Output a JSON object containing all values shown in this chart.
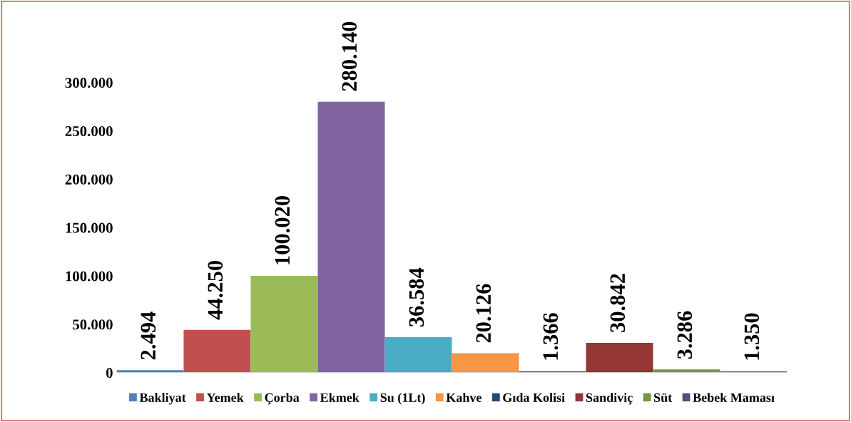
{
  "chart_data": {
    "type": "bar",
    "categories": [
      null
    ],
    "series": [
      {
        "name": "Bakliyat",
        "color": "#4f81bd",
        "values": [
          2494
        ],
        "value_labels": [
          "2.494"
        ]
      },
      {
        "name": "Yemek",
        "color": "#c0504d",
        "values": [
          44250
        ],
        "value_labels": [
          "44.250"
        ]
      },
      {
        "name": "Çorba",
        "color": "#9bbb59",
        "values": [
          100020
        ],
        "value_labels": [
          "100.020"
        ]
      },
      {
        "name": "Ekmek",
        "color": "#8064a2",
        "values": [
          280140
        ],
        "value_labels": [
          "280.140"
        ]
      },
      {
        "name": "Su (1Lt)",
        "color": "#4bacc6",
        "values": [
          36584
        ],
        "value_labels": [
          "36.584"
        ]
      },
      {
        "name": "Kahve",
        "color": "#f79646",
        "values": [
          20126
        ],
        "value_labels": [
          "20.126"
        ]
      },
      {
        "name": "Gıda Kolisi",
        "color": "#1f497d",
        "values": [
          1366
        ],
        "value_labels": [
          "1.366"
        ]
      },
      {
        "name": "Sandiviç",
        "color": "#943634",
        "values": [
          30842
        ],
        "value_labels": [
          "30.842"
        ]
      },
      {
        "name": "Süt",
        "color": "#77933c",
        "values": [
          3286
        ],
        "value_labels": [
          "3.286"
        ]
      },
      {
        "name": "Bebek Maması",
        "color": "#5f497a",
        "values": [
          1350
        ],
        "value_labels": [
          "1.350"
        ]
      }
    ],
    "ylim": [
      0,
      300000
    ],
    "yticks": [
      0,
      {
        "value": 50000,
        "label": "50.000"
      },
      {
        "value": 100000,
        "label": "100.000"
      },
      {
        "value": 150000,
        "label": "150.000"
      },
      {
        "value": 200000,
        "label": "200.000"
      },
      {
        "value": 250000,
        "label": "250.000"
      },
      {
        "value": 300000,
        "label": "300.000"
      }
    ],
    "tick_labels": "y",
    "grid": false,
    "legend": "bottom"
  }
}
